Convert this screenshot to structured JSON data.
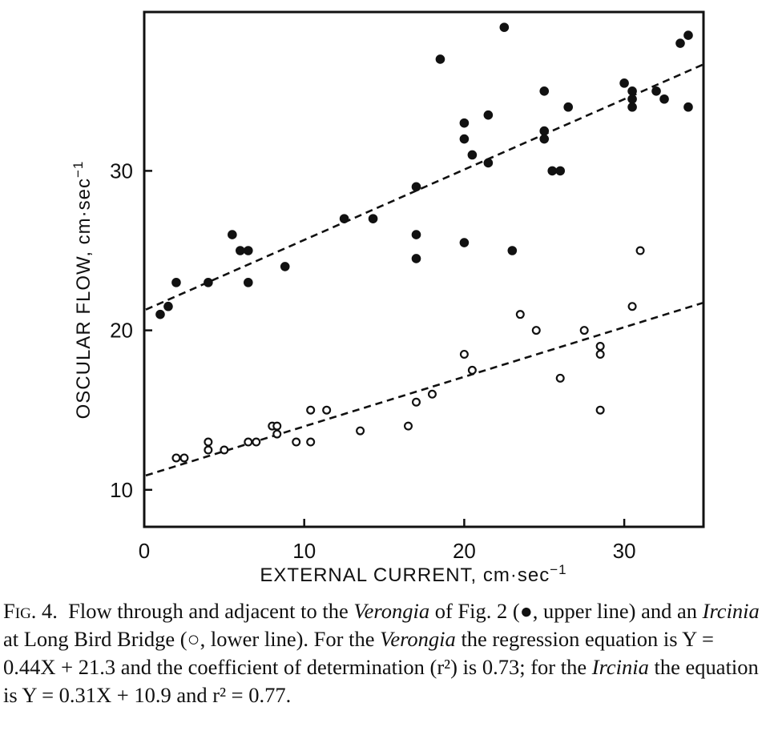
{
  "chart_data": {
    "type": "scatter",
    "xlabel": "EXTERNAL CURRENT, cm·sec",
    "xlabel_sup": "−1",
    "ylabel": "OSCULAR FLOW, cm·sec",
    "ylabel_sup": "−1",
    "xlim": [
      0,
      35
    ],
    "ylim": [
      7.7,
      40
    ],
    "xticks": [
      0,
      10,
      20,
      30
    ],
    "yticks": [
      10,
      20,
      30
    ],
    "grid": false,
    "series": [
      {
        "marker": "filled-circle",
        "color": "#111111",
        "points": [
          [
            1,
            21
          ],
          [
            1.5,
            21.5
          ],
          [
            2,
            23
          ],
          [
            4,
            23
          ],
          [
            5.5,
            26
          ],
          [
            6,
            25
          ],
          [
            6.5,
            25
          ],
          [
            6.5,
            23
          ],
          [
            8.8,
            24
          ],
          [
            12.5,
            27
          ],
          [
            14.3,
            27
          ],
          [
            17,
            29
          ],
          [
            17,
            26
          ],
          [
            17,
            24.5
          ],
          [
            18.5,
            37
          ],
          [
            20,
            33
          ],
          [
            20,
            32
          ],
          [
            20,
            25.5
          ],
          [
            20.5,
            31
          ],
          [
            21.5,
            33.5
          ],
          [
            21.5,
            30.5
          ],
          [
            22.5,
            39
          ],
          [
            23,
            25
          ],
          [
            25,
            35
          ],
          [
            25,
            32.5
          ],
          [
            25,
            32
          ],
          [
            25.5,
            30
          ],
          [
            26,
            30
          ],
          [
            26.5,
            34
          ],
          [
            30,
            35.5
          ],
          [
            30.5,
            35
          ],
          [
            30.5,
            34.5
          ],
          [
            30.5,
            34
          ],
          [
            32,
            35
          ],
          [
            32.5,
            34.5
          ],
          [
            33.5,
            38
          ],
          [
            34,
            38.5
          ],
          [
            34,
            34
          ]
        ],
        "fit": {
          "slope": 0.44,
          "intercept": 21.3
        }
      },
      {
        "marker": "open-circle",
        "color": "#111111",
        "points": [
          [
            2,
            12
          ],
          [
            2.5,
            12
          ],
          [
            4,
            13
          ],
          [
            4,
            12.5
          ],
          [
            5,
            12.5
          ],
          [
            6.5,
            13
          ],
          [
            7,
            13
          ],
          [
            8,
            14
          ],
          [
            8.3,
            14
          ],
          [
            8.3,
            13.5
          ],
          [
            9.5,
            13
          ],
          [
            10.4,
            13
          ],
          [
            10.4,
            15
          ],
          [
            11.4,
            15
          ],
          [
            13.5,
            13.7
          ],
          [
            16.5,
            14
          ],
          [
            17,
            15.5
          ],
          [
            18,
            16
          ],
          [
            20,
            18.5
          ],
          [
            20.5,
            17.5
          ],
          [
            23.5,
            21
          ],
          [
            24.5,
            20
          ],
          [
            26,
            17
          ],
          [
            27.5,
            20
          ],
          [
            28.5,
            19
          ],
          [
            28.5,
            18.5
          ],
          [
            28.5,
            15
          ],
          [
            30.5,
            21.5
          ],
          [
            31,
            25
          ]
        ],
        "fit": {
          "slope": 0.31,
          "intercept": 10.9
        }
      }
    ]
  },
  "caption": {
    "fig_label": "Fig. 4.",
    "seg1": "Flow through and adjacent to the ",
    "verongia": "Verongia",
    "seg2": " of Fig. 2 (●, upper line) and an ",
    "ircinia": "Ircinia",
    "seg3": " at Long Bird Bridge (○, lower line). For the ",
    "verongia2": "Verongia",
    "seg4": " the regression equation is Y = 0.44X + 21.3 and the coefficient of determination (r²) is 0.73; for the ",
    "ircinia2": "Ircinia",
    "seg5": " the equation is Y = 0.31X + 10.9 and r² = 0.77."
  }
}
